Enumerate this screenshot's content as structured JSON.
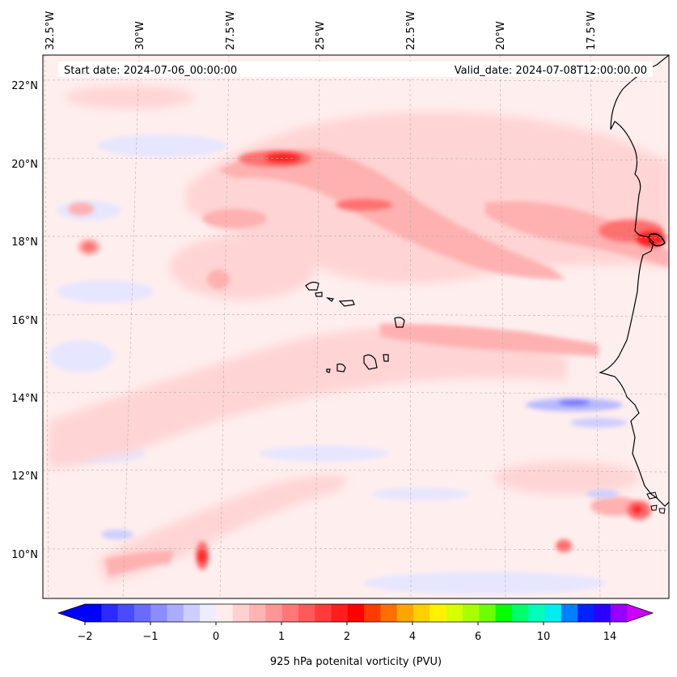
{
  "map": {
    "lon_labels": [
      "32.5°W",
      "30°W",
      "27.5°W",
      "25°W",
      "22.5°W",
      "20°W",
      "17.5°W"
    ],
    "lat_labels": [
      "22°N",
      "20°N",
      "18°N",
      "16°N",
      "14°N",
      "12°N",
      "10°N"
    ],
    "start_date": "Start date: 2024-07-06_00:00:00",
    "valid_date": "Valid_date: 2024-07-08T12:00:00.00",
    "field": "925 hPa potenital vorticity (PVU)"
  },
  "colorbar": {
    "tick_labels": [
      "−2",
      "−1",
      "0",
      "1",
      "2",
      "4",
      "6",
      "10",
      "14"
    ],
    "colors": [
      "#0000ff",
      "#2b2bff",
      "#4a4aff",
      "#6a6aff",
      "#8c8cff",
      "#ababff",
      "#cdcdff",
      "#ededff",
      "#ffecec",
      "#ffd0d0",
      "#ffb3b3",
      "#ff9595",
      "#ff7777",
      "#ff5959",
      "#ff3b3b",
      "#ff1d1d",
      "#ff0000",
      "#ff3a00",
      "#ff7000",
      "#ffa500",
      "#ffcf00",
      "#fff200",
      "#d8ff00",
      "#a8ff00",
      "#6cff00",
      "#00ff00",
      "#00ff6a",
      "#00ffb8",
      "#00eeee",
      "#0080ff",
      "#0022ff",
      "#2a00ff",
      "#9600ff"
    ],
    "under_color": "#0000ff",
    "over_color": "#cc00ff"
  }
}
